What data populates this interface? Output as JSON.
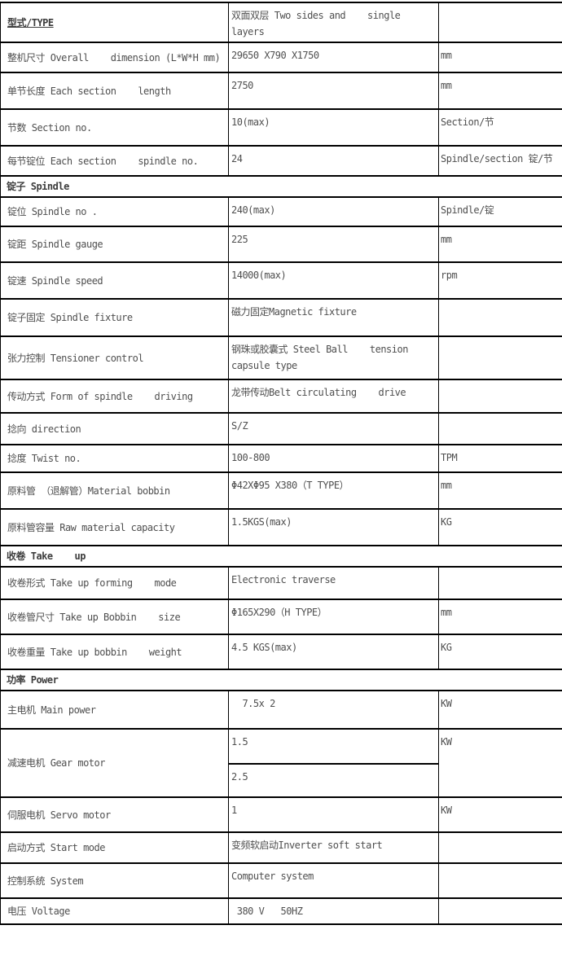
{
  "table": {
    "columns": [
      "parameter",
      "value",
      "unit"
    ],
    "rows": [
      {
        "type": "data",
        "label": "型式/TYPE",
        "value": "双面双层 Two sides and    single layers",
        "unit": ""
      },
      {
        "type": "data",
        "label": "整机尺寸 Overall    dimension (L*W*H mm)",
        "value": "29650 X790 X1750",
        "unit": "mm"
      },
      {
        "type": "data",
        "label": "单节长度 Each section    length",
        "value": "2750",
        "unit": "mm"
      },
      {
        "type": "data",
        "label": "节数 Section no.",
        "value": "10(max)",
        "unit": "Section/节"
      },
      {
        "type": "data",
        "label": "每节锭位 Each section    spindle no.",
        "value": "24",
        "unit": "Spindle/section 锭/节"
      },
      {
        "type": "section",
        "label": "锭子 Spindle"
      },
      {
        "type": "data",
        "label": "锭位 Spindle no .",
        "value": "240(max)",
        "unit": "Spindle/锭"
      },
      {
        "type": "data",
        "label": "锭距 Spindle gauge",
        "value": "225",
        "unit": "mm"
      },
      {
        "type": "data",
        "label": "锭速 Spindle speed",
        "value": "14000(max)",
        "unit": "rpm"
      },
      {
        "type": "data",
        "label": "锭子固定 Spindle fixture",
        "value": "磁力固定Magnetic fixture",
        "unit": ""
      },
      {
        "type": "data",
        "label": "张力控制 Tensioner control",
        "value": "钢珠或胶囊式 Steel Ball    tension capsule type",
        "unit": ""
      },
      {
        "type": "data",
        "label": "传动方式 Form of spindle    driving",
        "value": "龙带传动Belt circulating    drive",
        "unit": ""
      },
      {
        "type": "data",
        "label": "捻向 direction",
        "value": "S/Z",
        "unit": ""
      },
      {
        "type": "data",
        "label": "捻度 Twist no.",
        "value": "100-800",
        "unit": "TPM"
      },
      {
        "type": "data",
        "label": "原料管 （退解管）Material bobbin",
        "value": "Φ42XΦ95 X380（T TYPE）",
        "unit": "mm"
      },
      {
        "type": "data",
        "label": "原料管容量 Raw material capacity",
        "value": "1.5KGS(max)",
        "unit": "KG"
      },
      {
        "type": "section",
        "label": "收卷 Take    up"
      },
      {
        "type": "data",
        "label": "收卷形式 Take up forming    mode",
        "value": "Electronic traverse",
        "unit": ""
      },
      {
        "type": "data",
        "label": "收卷管尺寸 Take up Bobbin    size",
        "value": "Φ165X290（H TYPE）",
        "unit": "mm"
      },
      {
        "type": "data",
        "label": "收卷重量 Take up bobbin    weight",
        "value": "4.5 KGS(max)",
        "unit": "KG"
      },
      {
        "type": "section",
        "label": "功率 Power"
      },
      {
        "type": "data",
        "label": "主电机 Main power",
        "value": "  7.5x 2",
        "unit": "KW"
      },
      {
        "type": "data-split",
        "label": "减速电机 Gear motor",
        "values": [
          "1.5",
          "2.5"
        ],
        "unit": "KW"
      },
      {
        "type": "data",
        "label": "伺服电机 Servo motor",
        "value": "1",
        "unit": "KW"
      },
      {
        "type": "data",
        "label": "启动方式 Start mode",
        "value": "变频软启动Inverter soft start",
        "unit": ""
      },
      {
        "type": "data",
        "label": "控制系统 System",
        "value": "Computer system",
        "unit": ""
      },
      {
        "type": "data",
        "label": "电压 Voltage",
        "value": " 380 V   50HZ",
        "unit": ""
      }
    ]
  }
}
